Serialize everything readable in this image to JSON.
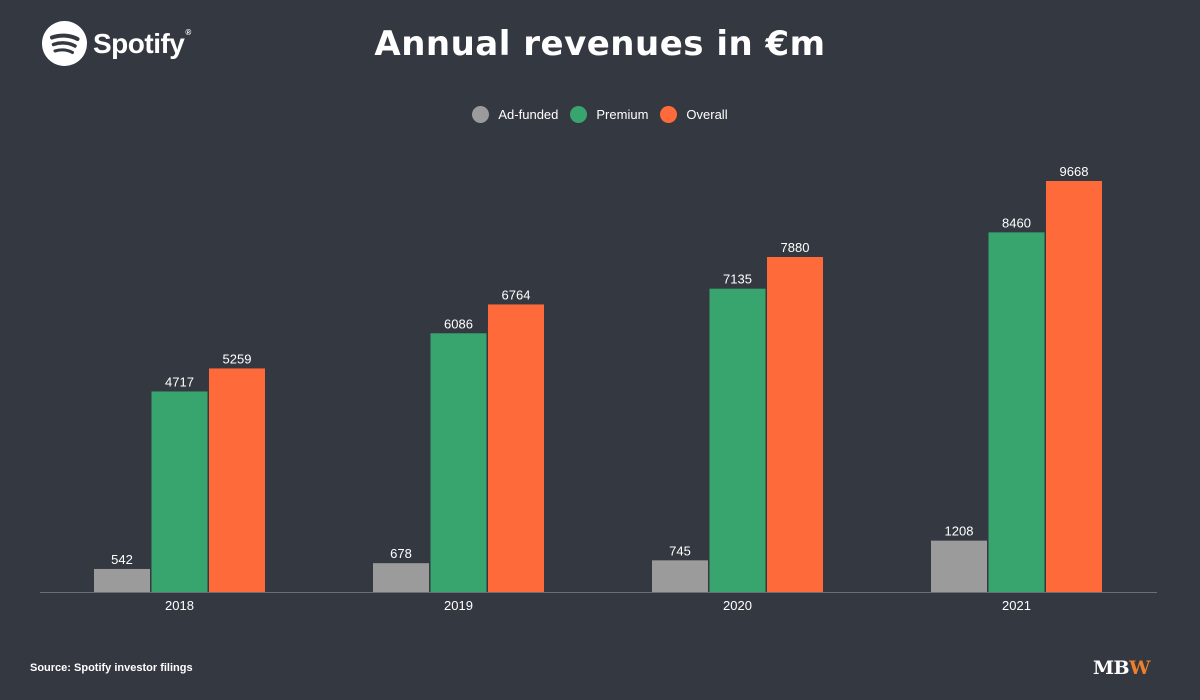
{
  "header": {
    "brand": "Spotify",
    "title": "Annual revenues in €m"
  },
  "colors": {
    "background": "#343941",
    "ad_funded": "#9b9b9b",
    "premium": "#38a56e",
    "overall": "#ff6a3b",
    "axis": "#6b6f76"
  },
  "chart_data": {
    "type": "bar",
    "title": "Annual revenues in €m",
    "categories": [
      "2018",
      "2019",
      "2020",
      "2021"
    ],
    "series": [
      {
        "name": "Ad-funded",
        "color": "#9b9b9b",
        "values": [
          542,
          678,
          745,
          1208
        ]
      },
      {
        "name": "Premium",
        "color": "#38a56e",
        "values": [
          4717,
          6086,
          7135,
          8460
        ]
      },
      {
        "name": "Overall",
        "color": "#ff6a3b",
        "values": [
          5259,
          6764,
          7880,
          9668
        ]
      }
    ],
    "xlabel": "",
    "ylabel": "",
    "ylim": [
      0,
      10000
    ],
    "grid": false,
    "legend": "top-center",
    "data_labels": true
  },
  "footer": {
    "source": "Source: Spotify investor filings",
    "mbw_mb": "MB",
    "mbw_w": "W"
  }
}
